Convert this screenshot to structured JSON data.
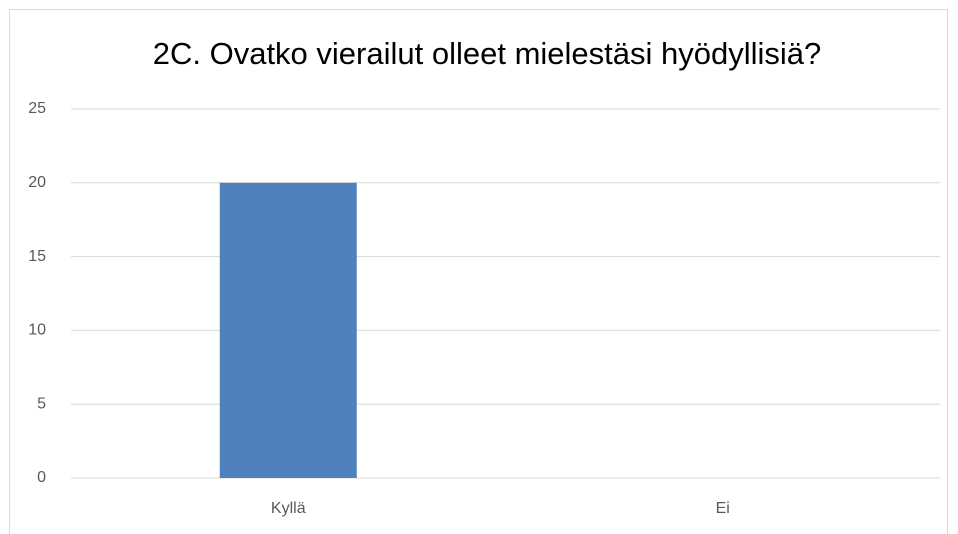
{
  "chart_data": {
    "type": "bar",
    "title": "2C. Ovatko vierailut olleet mielestäsi hyödyllisiä?",
    "categories": [
      "Kyllä",
      "Ei"
    ],
    "values": [
      20,
      0
    ],
    "color": "#4f81bd",
    "ylim": [
      0,
      25
    ],
    "yticks": [
      0,
      5,
      10,
      15,
      20,
      25
    ],
    "grid": true
  }
}
